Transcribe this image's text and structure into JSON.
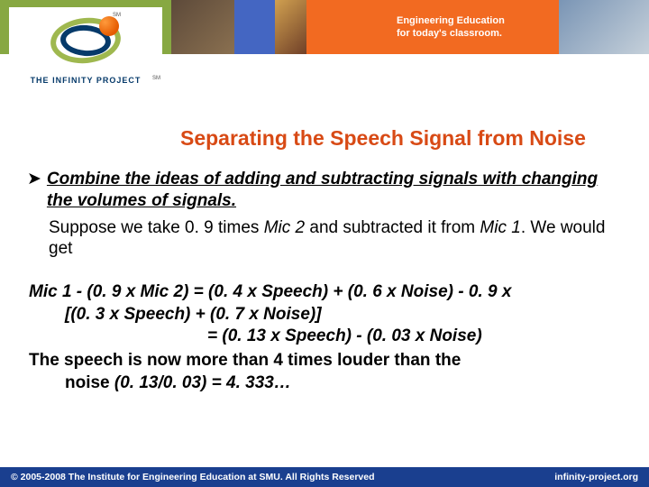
{
  "header": {
    "tagline_line1": "Engineering Education",
    "tagline_line2": "for today's classroom.",
    "logo_text": "THE INFINITY PROJECT",
    "sm": "SM",
    "colors": {
      "green": "#87a842",
      "blue": "#4466c2",
      "orange": "#f26a21"
    }
  },
  "title": "Separating the Speech Signal from Noise",
  "bullet": {
    "arrow": "➤",
    "main": "Combine the ideas of adding and subtracting signals with changing the volumes of signals.",
    "sub_pre": "Suppose we take 0. 9 times ",
    "sub_mic2": "Mic 2",
    "sub_mid": " and subtracted it from ",
    "sub_mic1": "Mic 1",
    "sub_tail": ". We would get"
  },
  "math": {
    "eq1a": "Mic 1 -  (0. 9 x Mic 2) = (0. 4 x Speech) + (0. 6 x Noise) -  0. 9 x",
    "eq1b": "[(0. 3 x Speech) + (0. 7 x Noise)]",
    "eq2": "= (0. 13 x Speech) - (0. 03 x Noise)",
    "concl_a": "The speech is now more than 4 times louder than the",
    "concl_b_pre": "noise  ",
    "concl_b_ital": "(0. 13/0. 03) = 4. 333…"
  },
  "footer": {
    "left": "© 2005-2008  The Institute for Engineering Education at SMU.  All Rights Reserved",
    "right": "infinity-project.org"
  }
}
